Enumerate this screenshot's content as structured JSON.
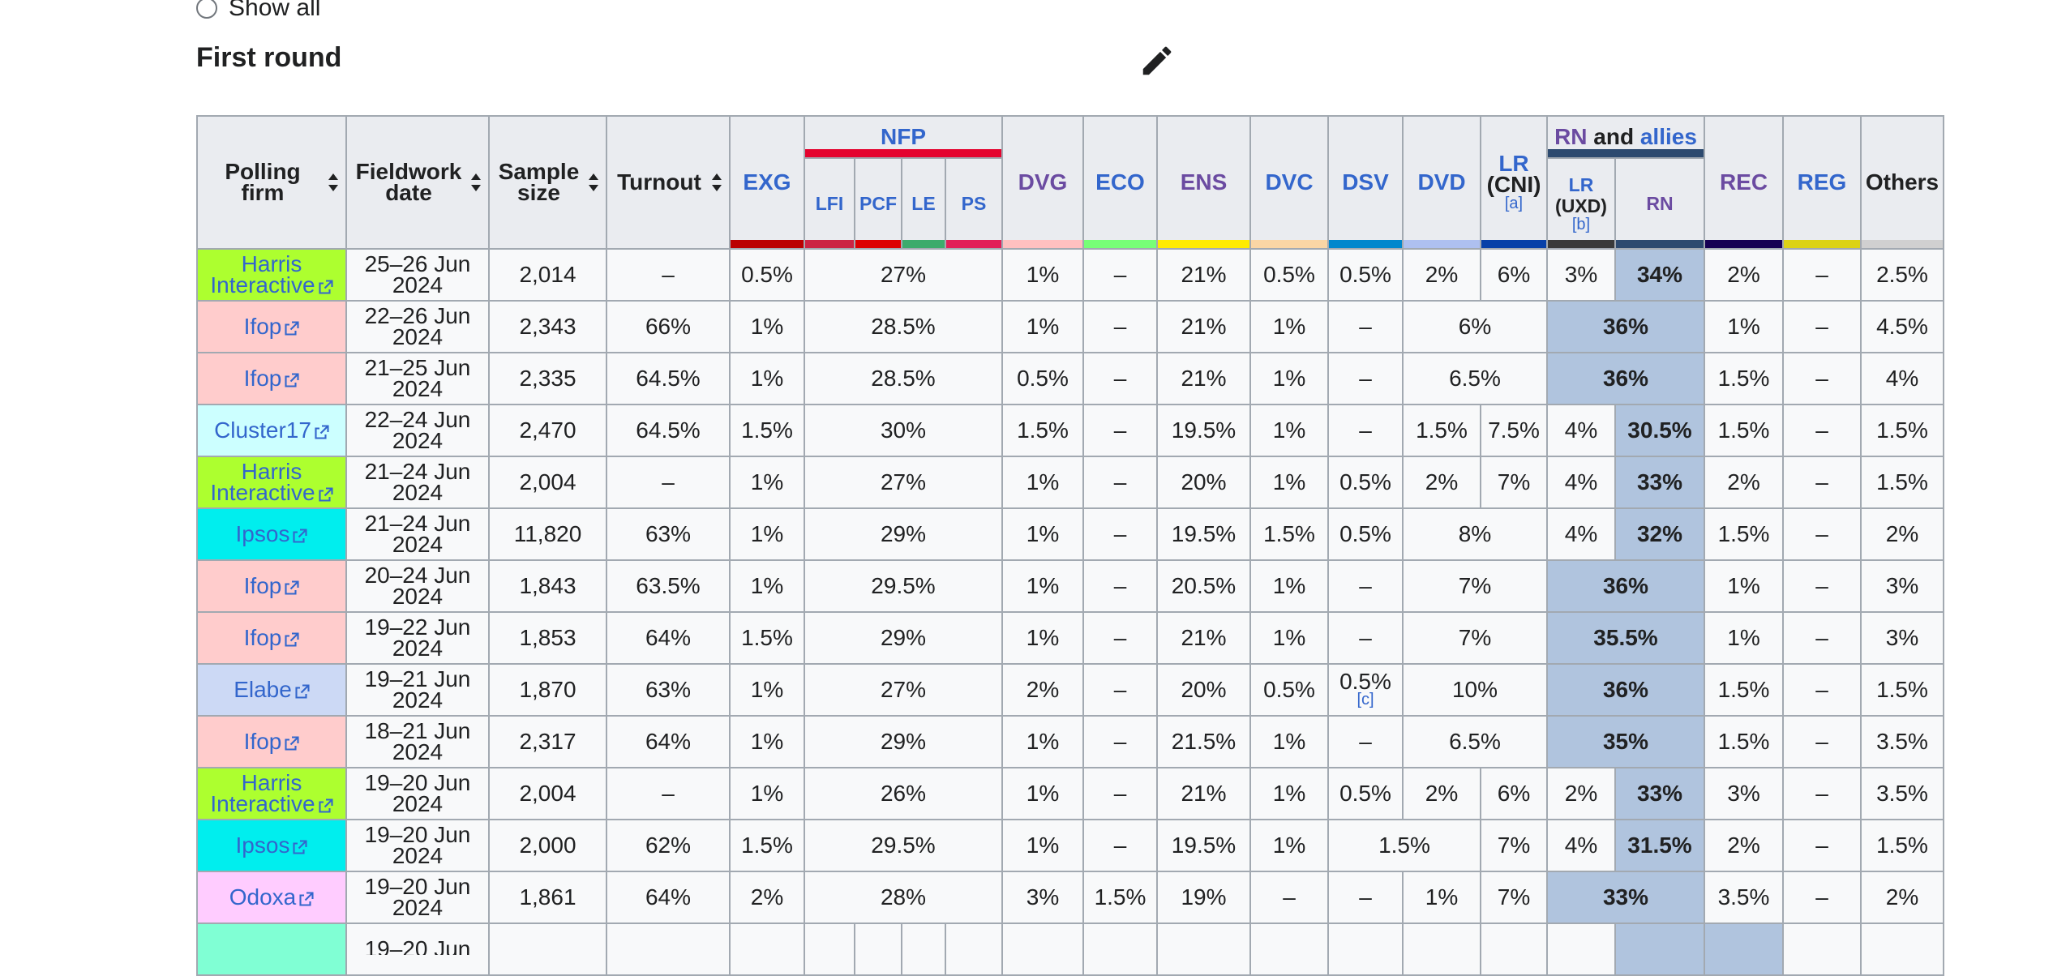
{
  "filter": {
    "show_all": "Show all"
  },
  "section": {
    "title": "First round"
  },
  "colors": {
    "highlight_rn": "#b0c4de",
    "link": "#3366cc"
  },
  "header": {
    "polling_firm": "Polling firm",
    "fieldwork_date": "Fieldwork date",
    "sample_size": "Sample size",
    "turnout": "Turnout",
    "exg": "EXG",
    "nfp": "NFP",
    "lfi": "LFI",
    "pcf": "PCF",
    "le": "LE",
    "ps": "PS",
    "dvg": "DVG",
    "eco": "ECO",
    "ens": "ENS",
    "dvc": "DVC",
    "dsv": "DSV",
    "dvd": "DVD",
    "lr_cni": "LR",
    "lr_cni_b": "(CNI)",
    "note_a": "[a]",
    "rn_allies_rn": "RN",
    "rn_allies_and": "and",
    "rn_allies_allies": "allies",
    "lr_uxd": "LR",
    "lr_uxd_b": "(UXD)",
    "note_b": "[b]",
    "rn": "RN",
    "rec": "REC",
    "reg": "REG",
    "others": "Others"
  },
  "rows": [
    {
      "firm": "Harris Interactive",
      "firm_color": "#adff2f",
      "date": "25–26 Jun 2024",
      "sample": "2,014",
      "turnout": "–",
      "exg": "0.5%",
      "nfp": "27%",
      "dvg": "1%",
      "eco": "–",
      "ens": "21%",
      "dvc": "0.5%",
      "dsv": "0.5%",
      "dvd": "2%",
      "lr": "6%",
      "uxd": "3%",
      "rn": "34%",
      "rec": "2%",
      "reg": "–",
      "others": "2.5%"
    },
    {
      "firm": "Ifop",
      "firm_color": "#ffcccc",
      "date": "22–26 Jun 2024",
      "sample": "2,343",
      "turnout": "66%",
      "exg": "1%",
      "nfp": "28.5%",
      "dvg": "1%",
      "eco": "–",
      "ens": "21%",
      "dvc": "1%",
      "dsv": "–",
      "dvd_lr": "6%",
      "rn_all": "36%",
      "rec": "1%",
      "reg": "–",
      "others": "4.5%"
    },
    {
      "firm": "Ifop",
      "firm_color": "#ffcccc",
      "date": "21–25 Jun 2024",
      "sample": "2,335",
      "turnout": "64.5%",
      "exg": "1%",
      "nfp": "28.5%",
      "dvg": "0.5%",
      "eco": "–",
      "ens": "21%",
      "dvc": "1%",
      "dsv": "–",
      "dvd_lr": "6.5%",
      "rn_all": "36%",
      "rec": "1.5%",
      "reg": "–",
      "others": "4%"
    },
    {
      "firm": "Cluster17",
      "firm_color": "#ccffff",
      "date": "22–24 Jun 2024",
      "sample": "2,470",
      "turnout": "64.5%",
      "exg": "1.5%",
      "nfp": "30%",
      "dvg": "1.5%",
      "eco": "–",
      "ens": "19.5%",
      "dvc": "1%",
      "dsv": "–",
      "dvd": "1.5%",
      "lr": "7.5%",
      "uxd": "4%",
      "rn": "30.5%",
      "rec": "1.5%",
      "reg": "–",
      "others": "1.5%"
    },
    {
      "firm": "Harris Interactive",
      "firm_color": "#adff2f",
      "date": "21–24 Jun 2024",
      "sample": "2,004",
      "turnout": "–",
      "exg": "1%",
      "nfp": "27%",
      "dvg": "1%",
      "eco": "–",
      "ens": "20%",
      "dvc": "1%",
      "dsv": "0.5%",
      "dvd": "2%",
      "lr": "7%",
      "uxd": "4%",
      "rn": "33%",
      "rec": "2%",
      "reg": "–",
      "others": "1.5%"
    },
    {
      "firm": "Ipsos",
      "firm_color": "#00eeee",
      "date": "21–24 Jun 2024",
      "sample": "11,820",
      "turnout": "63%",
      "exg": "1%",
      "nfp": "29%",
      "dvg": "1%",
      "eco": "–",
      "ens": "19.5%",
      "dvc": "1.5%",
      "dsv": "0.5%",
      "dvd_lr": "8%",
      "uxd": "4%",
      "rn": "32%",
      "rec": "1.5%",
      "reg": "–",
      "others": "2%"
    },
    {
      "firm": "Ifop",
      "firm_color": "#ffcccc",
      "date": "20–24 Jun 2024",
      "sample": "1,843",
      "turnout": "63.5%",
      "exg": "1%",
      "nfp": "29.5%",
      "dvg": "1%",
      "eco": "–",
      "ens": "20.5%",
      "dvc": "1%",
      "dsv": "–",
      "dvd_lr": "7%",
      "rn_all": "36%",
      "rec": "1%",
      "reg": "–",
      "others": "3%"
    },
    {
      "firm": "Ifop",
      "firm_color": "#ffcccc",
      "date": "19–22 Jun 2024",
      "sample": "1,853",
      "turnout": "64%",
      "exg": "1.5%",
      "nfp": "29%",
      "dvg": "1%",
      "eco": "–",
      "ens": "21%",
      "dvc": "1%",
      "dsv": "–",
      "dvd_lr": "7%",
      "rn_all": "35.5%",
      "rec": "1%",
      "reg": "–",
      "others": "3%"
    },
    {
      "firm": "Elabe",
      "firm_color": "#ccd9f5",
      "date": "19–21 Jun 2024",
      "sample": "1,870",
      "turnout": "63%",
      "exg": "1%",
      "nfp": "27%",
      "dvg": "2%",
      "eco": "–",
      "ens": "20%",
      "dvc": "0.5%",
      "dsv": "0.5%",
      "dsv_note": "[c]",
      "dvd_lr": "10%",
      "rn_all": "36%",
      "rec": "1.5%",
      "reg": "–",
      "others": "1.5%"
    },
    {
      "firm": "Ifop",
      "firm_color": "#ffcccc",
      "date": "18–21 Jun 2024",
      "sample": "2,317",
      "turnout": "64%",
      "exg": "1%",
      "nfp": "29%",
      "dvg": "1%",
      "eco": "–",
      "ens": "21.5%",
      "dvc": "1%",
      "dsv": "–",
      "dvd_lr": "6.5%",
      "rn_all": "35%",
      "rec": "1.5%",
      "reg": "–",
      "others": "3.5%"
    },
    {
      "firm": "Harris Interactive",
      "firm_color": "#adff2f",
      "date": "19–20 Jun 2024",
      "sample": "2,004",
      "turnout": "–",
      "exg": "1%",
      "nfp": "26%",
      "dvg": "1%",
      "eco": "–",
      "ens": "21%",
      "dvc": "1%",
      "dsv": "0.5%",
      "dvd": "2%",
      "lr": "6%",
      "uxd": "2%",
      "rn": "33%",
      "rec": "3%",
      "reg": "–",
      "others": "3.5%"
    },
    {
      "firm": "Ipsos",
      "firm_color": "#00eeee",
      "date": "19–20 Jun 2024",
      "sample": "2,000",
      "turnout": "62%",
      "exg": "1.5%",
      "nfp": "29.5%",
      "dvg": "1%",
      "eco": "–",
      "ens": "19.5%",
      "dvc": "1%",
      "dsv_dvd": "1.5%",
      "lr": "7%",
      "uxd": "4%",
      "rn": "31.5%",
      "rec": "2%",
      "reg": "–",
      "others": "1.5%"
    },
    {
      "firm": "Odoxa",
      "firm_color": "#ffccff",
      "date": "19–20 Jun 2024",
      "sample": "1,861",
      "turnout": "64%",
      "exg": "2%",
      "nfp": "28%",
      "dvg": "3%",
      "eco": "1.5%",
      "ens": "19%",
      "dvc": "–",
      "dsv": "–",
      "dvd": "1%",
      "lr": "7%",
      "rn_all": "33%",
      "rec": "3.5%",
      "reg": "–",
      "others": "2%"
    },
    {
      "firm": "",
      "firm_color": "#80ffd4",
      "date": "19–20 Jun",
      "cut": true
    }
  ]
}
